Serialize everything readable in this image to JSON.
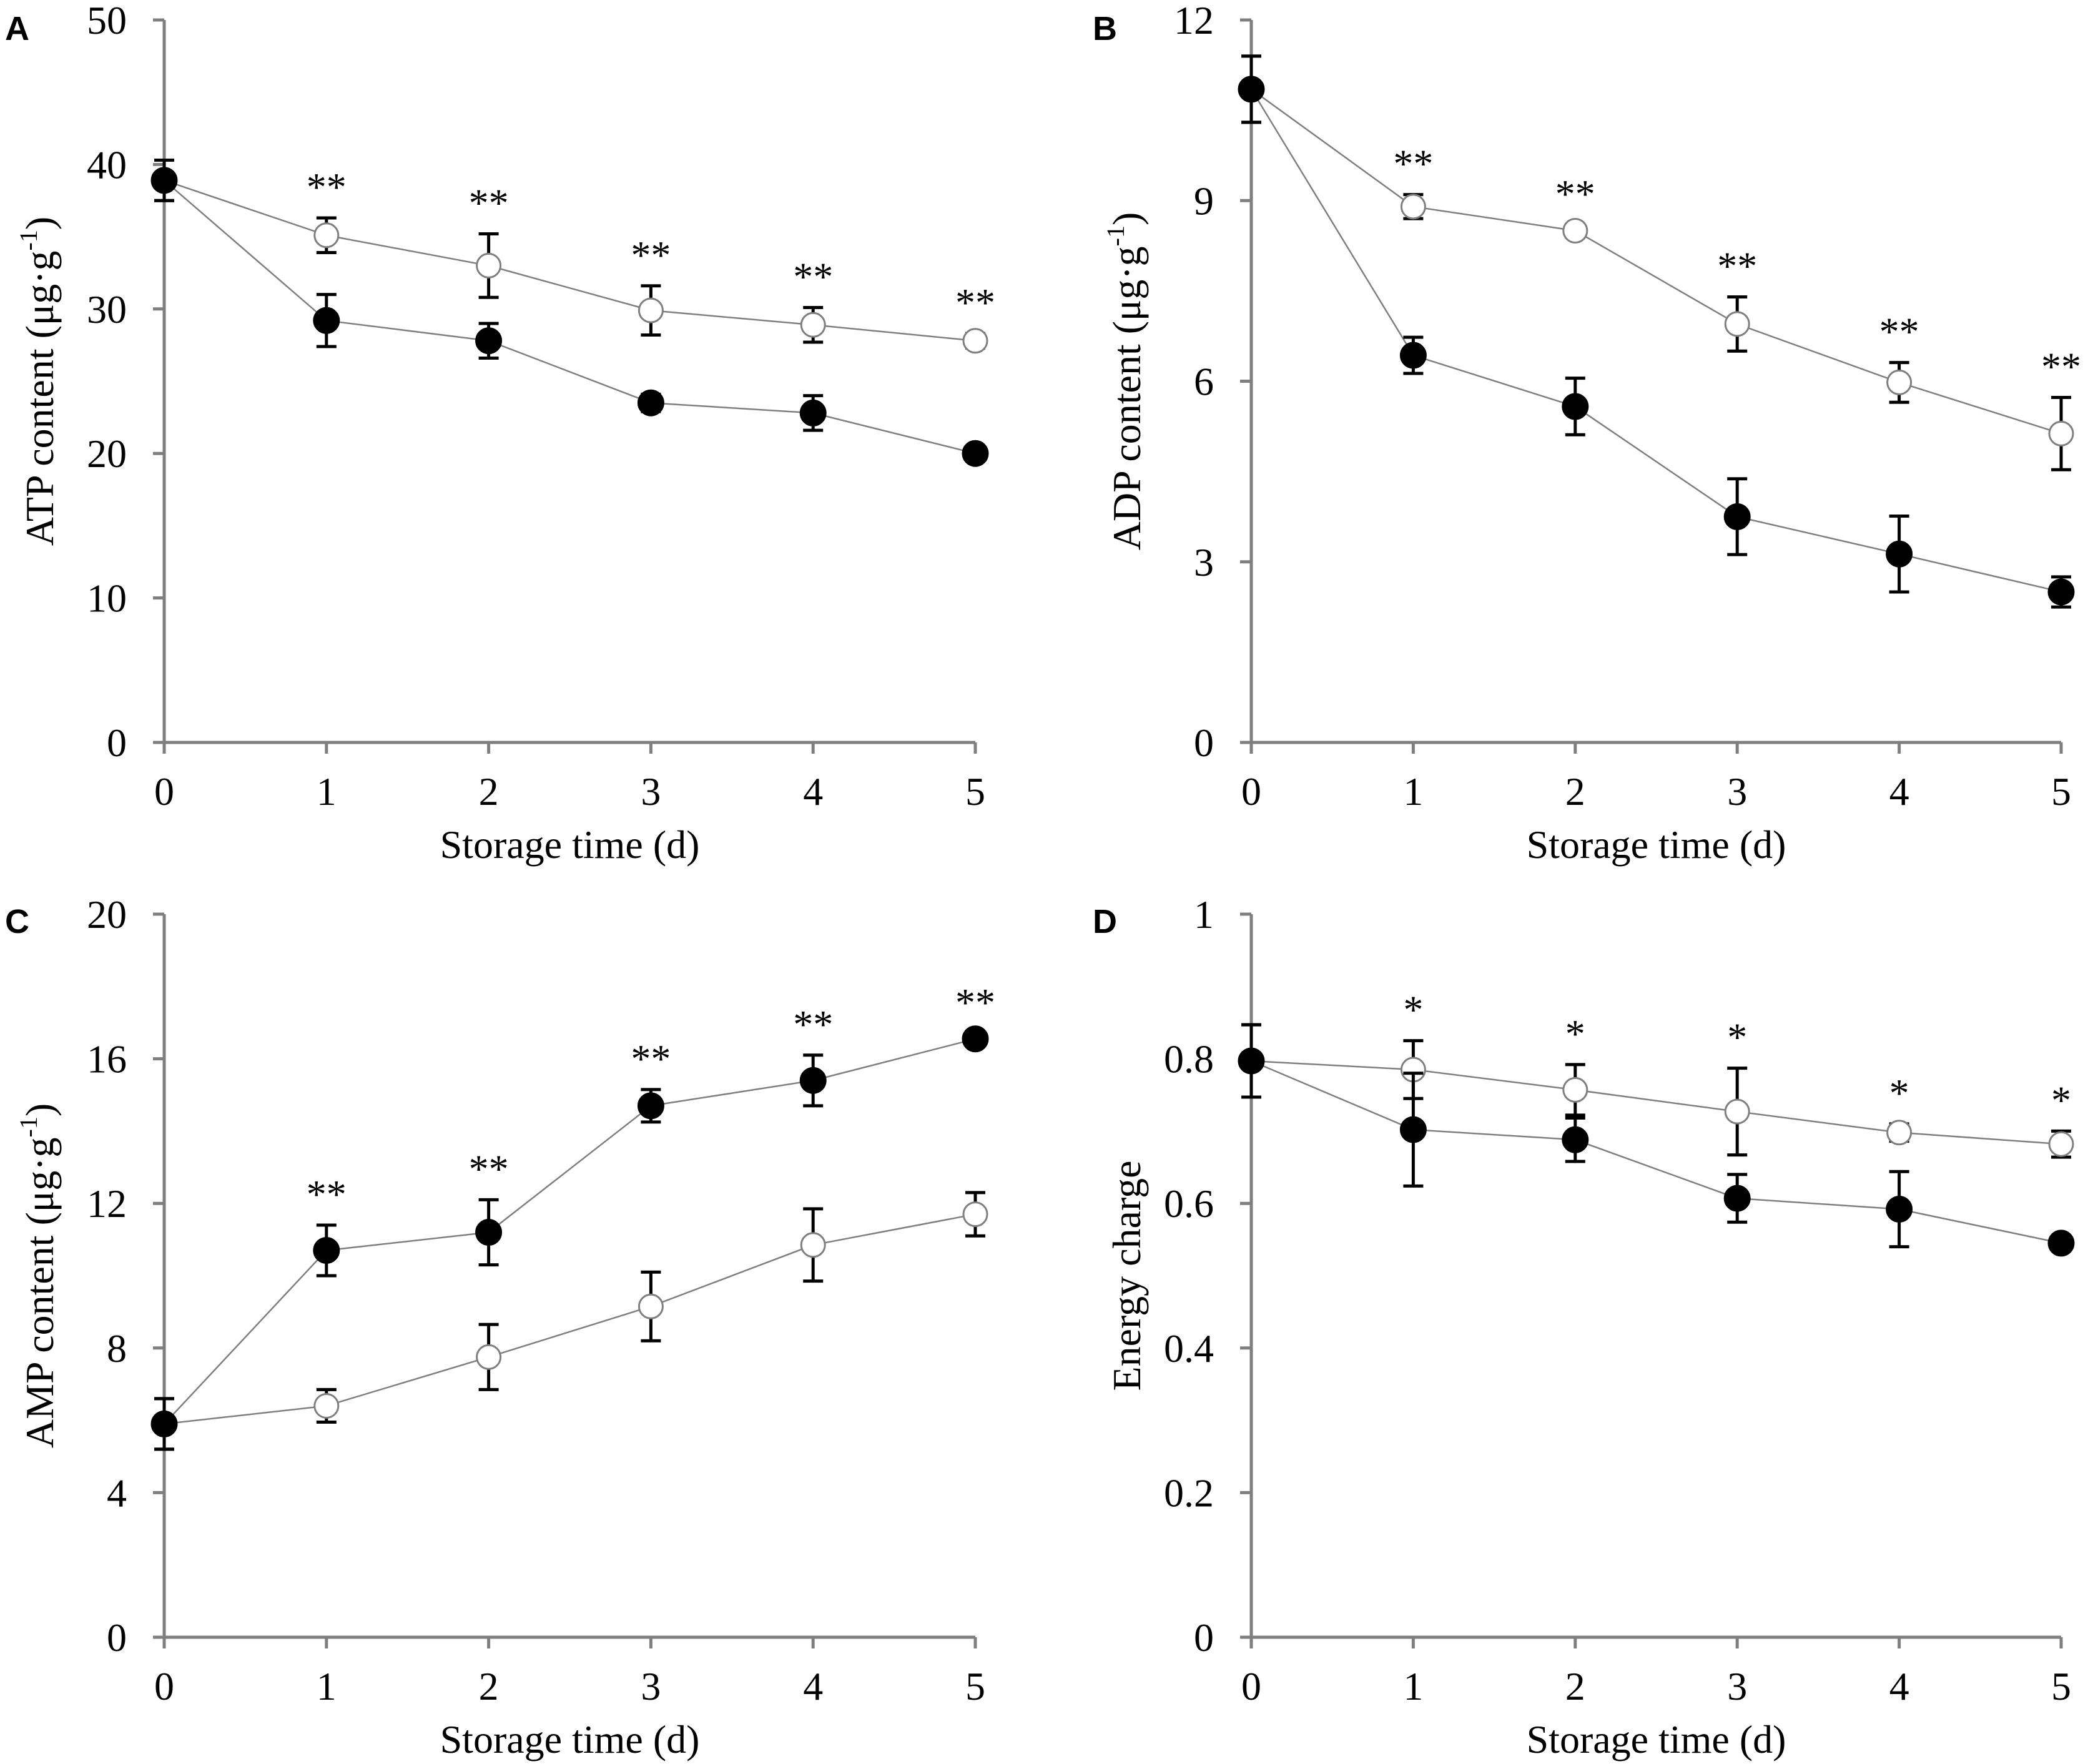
{
  "figure": {
    "chart_data": [
      {
        "id": "A",
        "type": "line",
        "panel_label": "A",
        "title": "",
        "xlabel": "Storage time (d)",
        "ylabel": "ATP content (μg·g⁻¹)",
        "ylabel_base": "ATP content (μg·g",
        "ylabel_sup": "-1",
        "ylabel_tail": ")",
        "categories": [
          "0",
          "1",
          "2",
          "3",
          "4",
          "5"
        ],
        "x": [
          0,
          1,
          2,
          3,
          4,
          5
        ],
        "ylim": [
          0,
          50
        ],
        "yticks": [
          0,
          10,
          20,
          30,
          40,
          50
        ],
        "grid": false,
        "series": [
          {
            "name": "open-circle-series",
            "marker": "open",
            "values": [
              38.9,
              35.1,
              33.0,
              29.9,
              28.9,
              27.8
            ],
            "errors": [
              1.4,
              1.2,
              2.2,
              1.7,
              1.2,
              0.5
            ]
          },
          {
            "name": "filled-circle-series",
            "marker": "filled",
            "values": [
              38.9,
              29.2,
              27.8,
              23.5,
              22.8,
              20.0
            ],
            "errors": [
              1.4,
              1.8,
              1.2,
              0.6,
              1.2,
              0.4
            ]
          }
        ],
        "significance": [
          "",
          "**",
          "**",
          "**",
          "**",
          "**"
        ]
      },
      {
        "id": "B",
        "type": "line",
        "panel_label": "B",
        "title": "",
        "xlabel": "Storage time (d)",
        "ylabel": "ADP content (μg·g⁻¹)",
        "ylabel_base": "ADP content (μg·g",
        "ylabel_sup": "-1",
        "ylabel_tail": ")",
        "categories": [
          "0",
          "1",
          "2",
          "3",
          "4",
          "5"
        ],
        "x": [
          0,
          1,
          2,
          3,
          4,
          5
        ],
        "ylim": [
          0,
          12
        ],
        "yticks": [
          0,
          3,
          6,
          9,
          12
        ],
        "grid": false,
        "series": [
          {
            "name": "open-circle-series",
            "marker": "open",
            "values": [
              10.85,
              8.9,
              8.5,
              6.95,
              5.98,
              5.13
            ],
            "errors": [
              0.55,
              0.2,
              0.1,
              0.45,
              0.33,
              0.6
            ]
          },
          {
            "name": "filled-circle-series",
            "marker": "filled",
            "values": [
              10.85,
              6.43,
              5.58,
              3.75,
              3.13,
              2.5
            ],
            "errors": [
              0.55,
              0.3,
              0.47,
              0.63,
              0.63,
              0.25
            ]
          }
        ],
        "significance": [
          "",
          "**",
          "**",
          "**",
          "**",
          "**"
        ]
      },
      {
        "id": "C",
        "type": "line",
        "panel_label": "C",
        "title": "",
        "xlabel": "Storage time (d)",
        "ylabel": "AMP content (μg·g⁻¹)",
        "ylabel_base": "AMP content (μg·g",
        "ylabel_sup": "-1",
        "ylabel_tail": ")",
        "categories": [
          "0",
          "1",
          "2",
          "3",
          "4",
          "5"
        ],
        "x": [
          0,
          1,
          2,
          3,
          4,
          5
        ],
        "ylim": [
          0,
          20
        ],
        "yticks": [
          0,
          4,
          8,
          12,
          16,
          20
        ],
        "grid": false,
        "series": [
          {
            "name": "open-circle-series",
            "marker": "open",
            "values": [
              5.9,
              6.4,
              7.75,
              9.15,
              10.85,
              11.7
            ],
            "errors": [
              0.7,
              0.45,
              0.9,
              0.95,
              1.0,
              0.6
            ]
          },
          {
            "name": "filled-circle-series",
            "marker": "filled",
            "values": [
              5.9,
              10.7,
              11.2,
              14.7,
              15.4,
              16.55
            ],
            "errors": [
              0.7,
              0.7,
              0.9,
              0.45,
              0.7,
              0.15
            ]
          }
        ],
        "significance": [
          "",
          "**",
          "**",
          "**",
          "**",
          "**"
        ]
      },
      {
        "id": "D",
        "type": "line",
        "panel_label": "D",
        "title": "",
        "xlabel": "Storage time (d)",
        "ylabel": "Energy charge",
        "ylabel_base": "Energy charge",
        "ylabel_sup": "",
        "ylabel_tail": "",
        "categories": [
          "0",
          "1",
          "2",
          "3",
          "4",
          "5"
        ],
        "x": [
          0,
          1,
          2,
          3,
          4,
          5
        ],
        "ylim": [
          0,
          1
        ],
        "yticks": [
          0,
          0.2,
          0.4,
          0.6,
          0.8,
          1
        ],
        "ytick_labels": [
          "0",
          "0.2",
          "0.4",
          "0.6",
          "0.8",
          "1"
        ],
        "grid": false,
        "series": [
          {
            "name": "open-circle-series",
            "marker": "open",
            "values": [
              0.797,
              0.785,
              0.757,
              0.727,
              0.698,
              0.682
            ],
            "errors": [
              0.05,
              0.04,
              0.035,
              0.06,
              0.012,
              0.018
            ]
          },
          {
            "name": "filled-circle-series",
            "marker": "filled",
            "values": [
              0.797,
              0.702,
              0.688,
              0.607,
              0.592,
              0.545
            ],
            "errors": [
              0.05,
              0.078,
              0.03,
              0.033,
              0.052,
              0.008
            ]
          }
        ],
        "significance": [
          "",
          "*",
          "*",
          "*",
          "*",
          "*"
        ]
      }
    ]
  }
}
